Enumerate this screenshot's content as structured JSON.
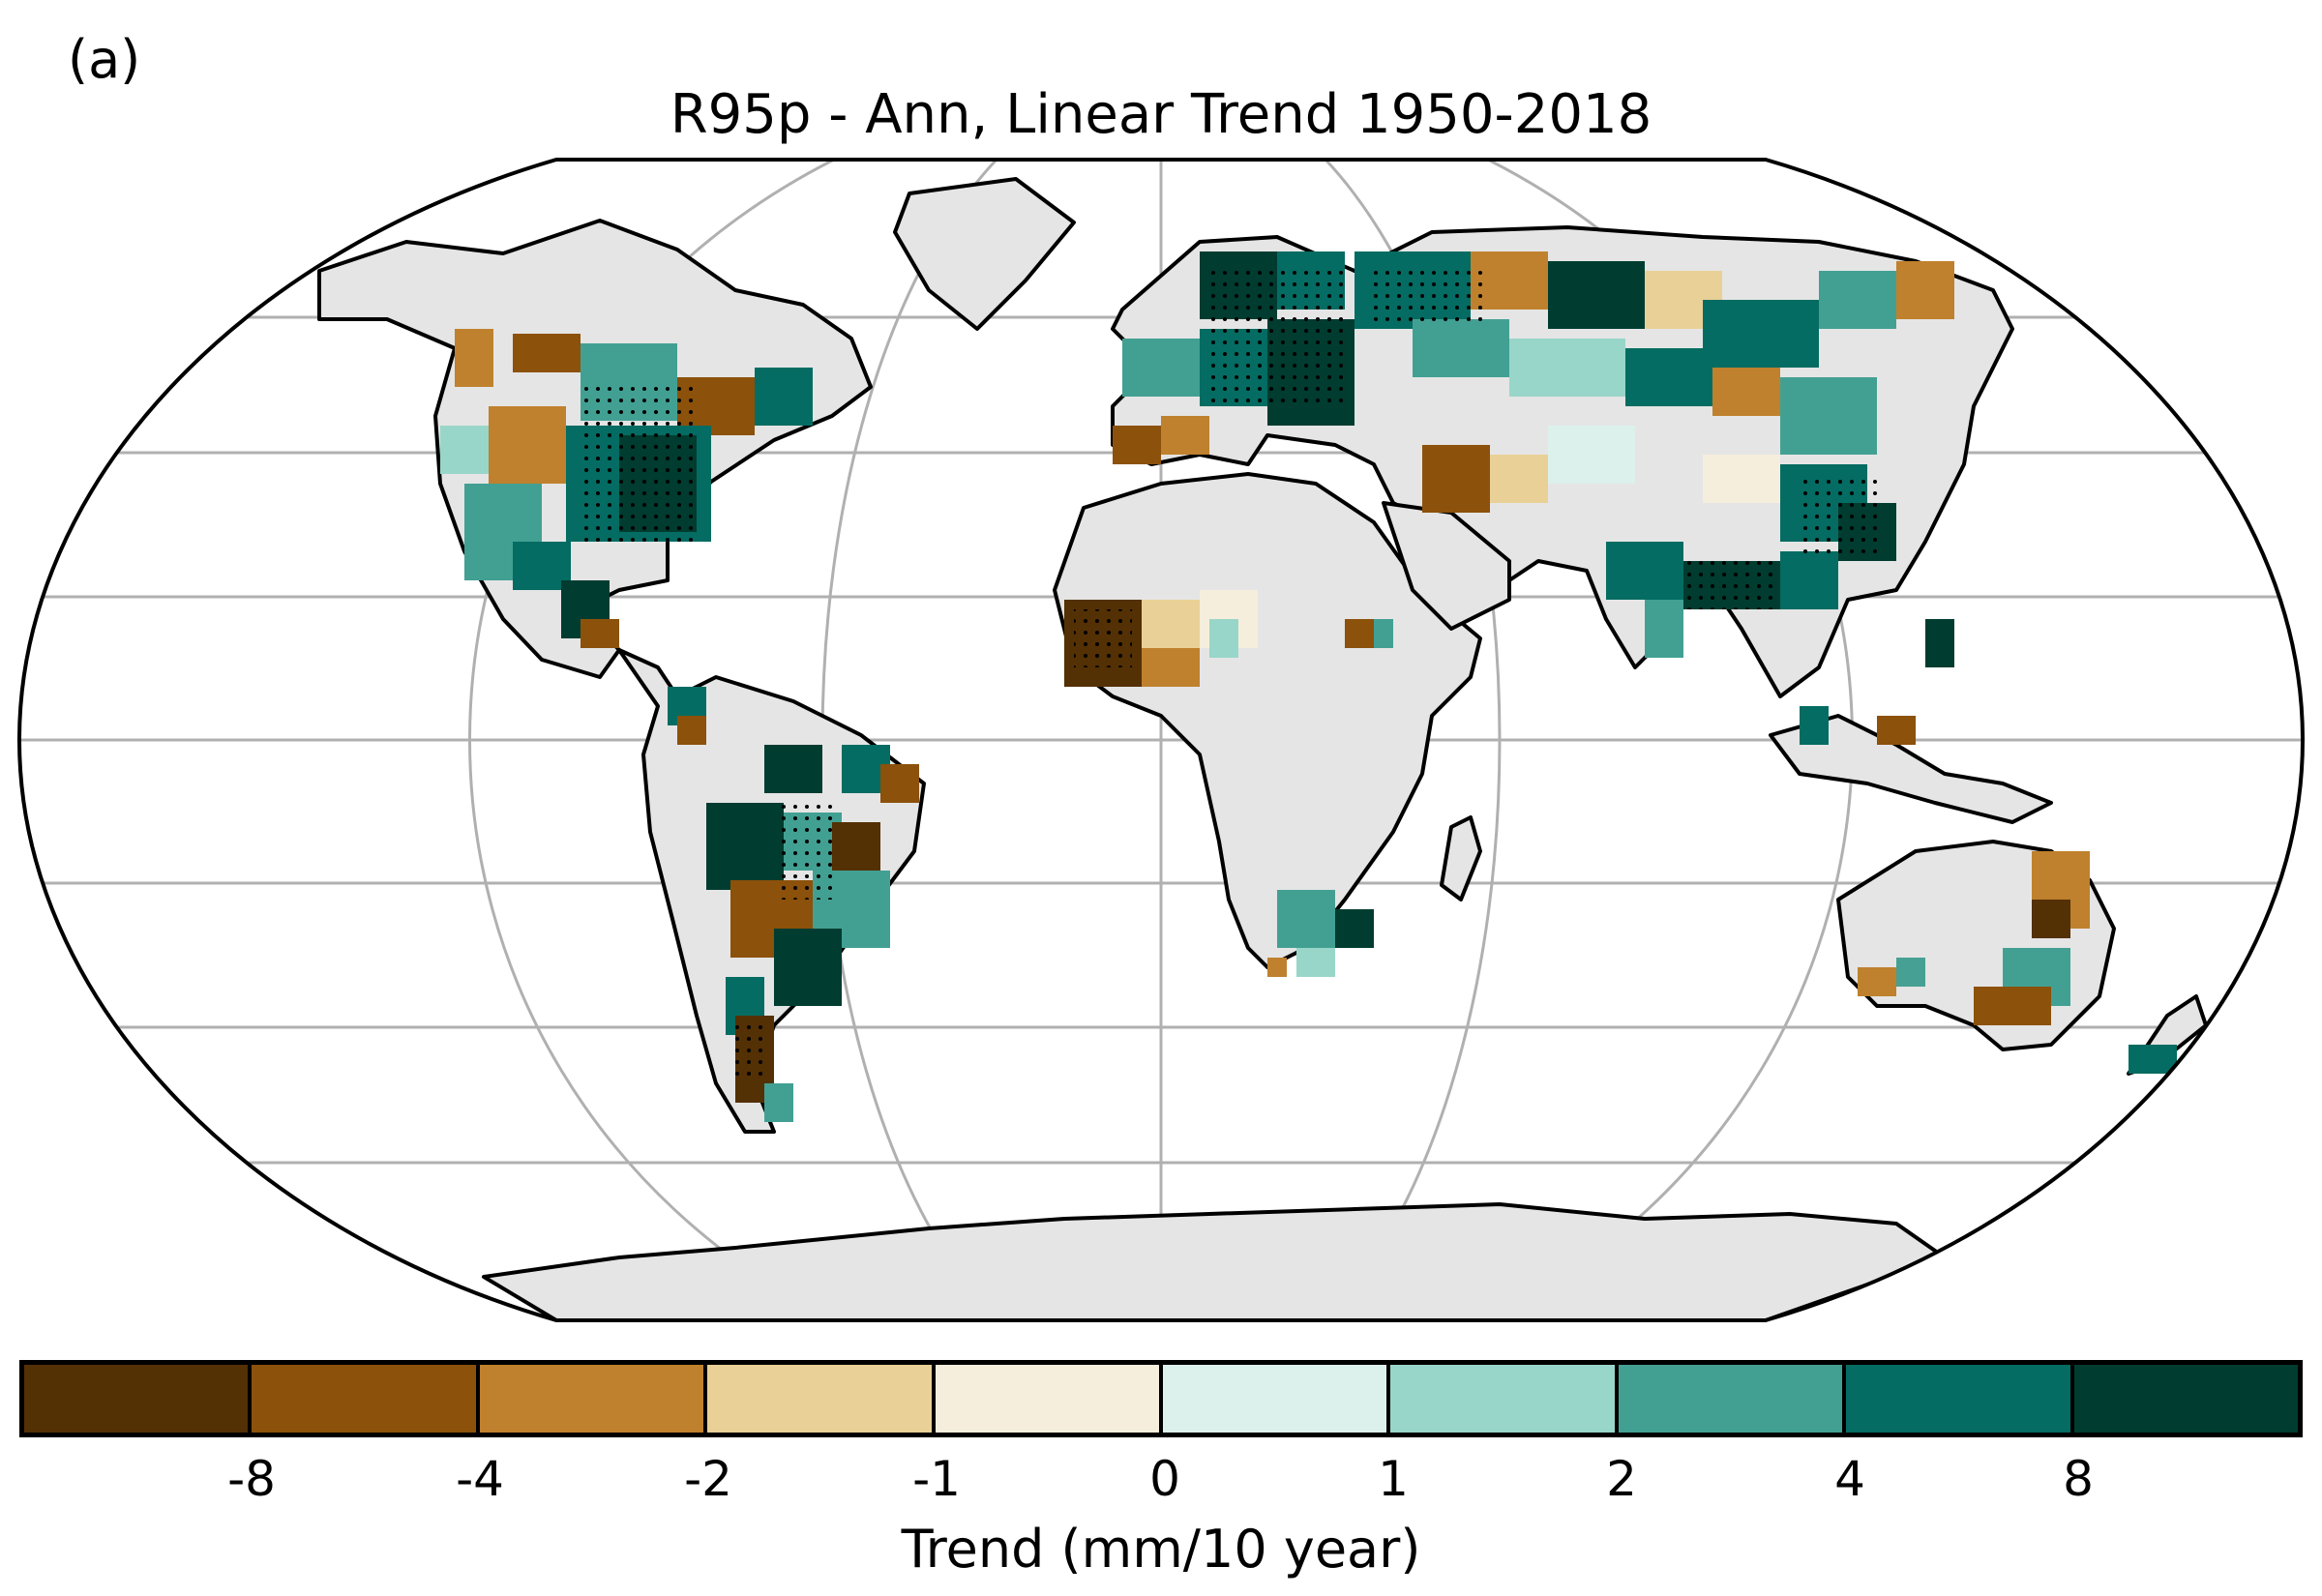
{
  "panel_label": "(a)",
  "map": {
    "title": "R95p - Ann, Linear Trend 1950-2018",
    "projection": "robinson",
    "land_color": "#e5e5e5",
    "ocean_color": "#ffffff",
    "gridline_color": "#b0b0b0",
    "stippling": "significant trends marked with dots"
  },
  "colorbar": {
    "label": "Trend (mm/10 year)",
    "colors": [
      "#543005",
      "#8c510a",
      "#bf812d",
      "#e9d096",
      "#f6eedc",
      "#dcf0ec",
      "#98d6c9",
      "#42a093",
      "#046c62",
      "#003c30"
    ],
    "ticks": [
      "-8",
      "-4",
      "-2",
      "-1",
      "0",
      "1",
      "2",
      "4",
      "8"
    ]
  }
}
